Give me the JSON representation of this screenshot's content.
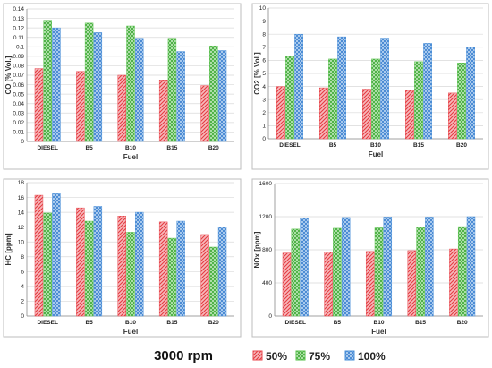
{
  "caption": "3000 rpm",
  "colors": {
    "50%": "#e8474d",
    "75%": "#56c048",
    "100%": "#4a90d9"
  },
  "legend": [
    "50%",
    "75%",
    "100%"
  ],
  "chart_data": [
    {
      "type": "bar",
      "categories": [
        "DIESEL",
        "B5",
        "B10",
        "B15",
        "B20"
      ],
      "series": [
        {
          "name": "50%",
          "values": [
            0.077,
            0.074,
            0.07,
            0.065,
            0.059
          ]
        },
        {
          "name": "75%",
          "values": [
            0.128,
            0.125,
            0.122,
            0.109,
            0.101
          ]
        },
        {
          "name": "100%",
          "values": [
            0.12,
            0.115,
            0.109,
            0.095,
            0.096
          ]
        }
      ],
      "xlabel": "Fuel",
      "ylabel": "CO [% Vol.]",
      "ylim": [
        0,
        0.14
      ],
      "yticks": [
        "0",
        "0.01",
        "0.02",
        "0.03",
        "0.04",
        "0.05",
        "0.06",
        "0.07",
        "0.08",
        "0.09",
        "0.1",
        "0.11",
        "0.12",
        "0.13",
        "0.14"
      ],
      "grid": true
    },
    {
      "type": "bar",
      "categories": [
        "DIESEL",
        "B5",
        "B10",
        "B15",
        "B20"
      ],
      "series": [
        {
          "name": "50%",
          "values": [
            4.0,
            3.9,
            3.8,
            3.7,
            3.5
          ]
        },
        {
          "name": "75%",
          "values": [
            6.3,
            6.1,
            6.1,
            5.9,
            5.8
          ]
        },
        {
          "name": "100%",
          "values": [
            8.0,
            7.8,
            7.7,
            7.3,
            7.0
          ]
        }
      ],
      "xlabel": "Fuel",
      "ylabel": "CO2 [% Vol.]",
      "ylim": [
        0,
        10
      ],
      "yticks": [
        "0",
        "1",
        "2",
        "3",
        "4",
        "5",
        "6",
        "7",
        "8",
        "9",
        "10"
      ],
      "grid": true
    },
    {
      "type": "bar",
      "categories": [
        "DIESEL",
        "B5",
        "B10",
        "B15",
        "B20"
      ],
      "series": [
        {
          "name": "50%",
          "values": [
            16.3,
            14.6,
            13.5,
            12.7,
            11.0
          ]
        },
        {
          "name": "75%",
          "values": [
            13.9,
            12.8,
            11.3,
            10.5,
            9.3
          ]
        },
        {
          "name": "100%",
          "values": [
            16.5,
            14.8,
            14.0,
            12.8,
            12.0
          ]
        }
      ],
      "xlabel": "Fuel",
      "ylabel": "HC [ppm]",
      "ylim": [
        0,
        18
      ],
      "yticks": [
        "0",
        "2",
        "4",
        "6",
        "8",
        "10",
        "12",
        "14",
        "16",
        "18"
      ],
      "grid": true
    },
    {
      "type": "bar",
      "categories": [
        "DIESEL",
        "B5",
        "B10",
        "B15",
        "B20"
      ],
      "series": [
        {
          "name": "50%",
          "values": [
            760,
            775,
            780,
            790,
            810
          ]
        },
        {
          "name": "75%",
          "values": [
            1050,
            1060,
            1065,
            1070,
            1080
          ]
        },
        {
          "name": "100%",
          "values": [
            1180,
            1190,
            1195,
            1195,
            1200
          ]
        }
      ],
      "xlabel": "Fuel",
      "ylabel": "NOx [ppm]",
      "ylim": [
        0,
        1600
      ],
      "yticks": [
        "0",
        "400",
        "800",
        "1200",
        "1600"
      ],
      "grid": true
    }
  ]
}
